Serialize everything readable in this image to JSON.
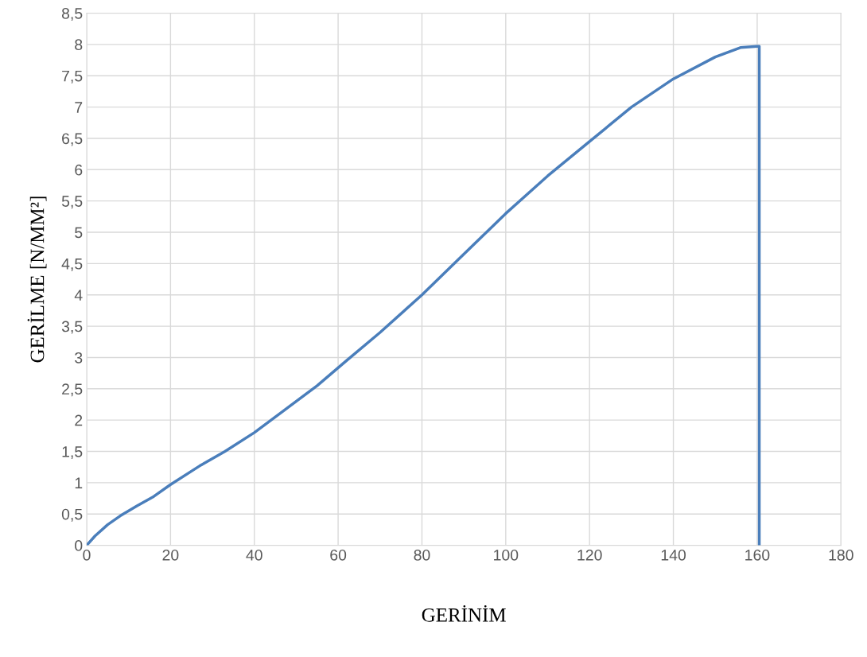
{
  "chart_data": {
    "type": "line",
    "xlabel": "GERİNİM",
    "ylabel": "GERİLME [N/MM²]",
    "x": [
      0,
      2,
      5,
      8,
      12,
      16,
      20,
      27,
      33,
      40,
      47,
      55,
      62,
      70,
      80,
      90,
      100,
      110,
      120,
      130,
      140,
      150,
      156,
      160,
      160.5,
      160.5
    ],
    "series": [
      {
        "color": "#4a7ebb",
        "values": [
          0,
          0.15,
          0.33,
          0.47,
          0.63,
          0.78,
          0.97,
          1.27,
          1.5,
          1.8,
          2.15,
          2.55,
          2.95,
          3.4,
          4.0,
          4.65,
          5.3,
          5.9,
          6.45,
          7.0,
          7.45,
          7.8,
          7.95,
          7.97,
          7.97,
          0
        ]
      }
    ],
    "xlim": [
      0,
      180
    ],
    "xticks": [
      0,
      20,
      40,
      60,
      80,
      100,
      120,
      140,
      160,
      180
    ],
    "ylim": [
      0,
      8.5
    ],
    "yticks": [
      0,
      {
        "value": 0.5,
        "label": "0,5"
      },
      1,
      {
        "value": 1.5,
        "label": "1,5"
      },
      2,
      {
        "value": 2.5,
        "label": "2,5"
      },
      3,
      {
        "value": 3.5,
        "label": "3,5"
      },
      4,
      {
        "value": 4.5,
        "label": "4,5"
      },
      5,
      {
        "value": 5.5,
        "label": "5,5"
      },
      6,
      {
        "value": 6.5,
        "label": "6,5"
      },
      7,
      {
        "value": 7.5,
        "label": "7,5"
      },
      8,
      {
        "value": 8.5,
        "label": "8,5"
      }
    ],
    "grid": true,
    "marker": "none",
    "line_style": "solid"
  }
}
